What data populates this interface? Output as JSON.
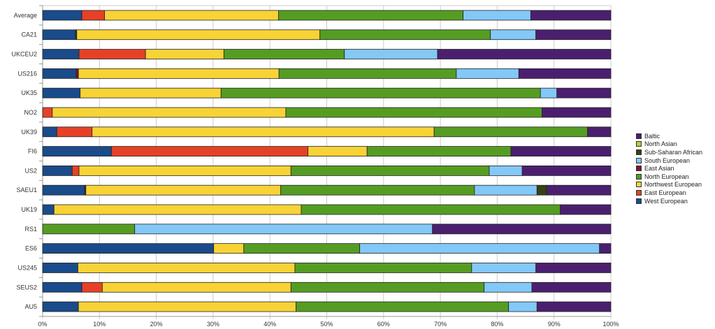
{
  "chart_data": {
    "type": "bar",
    "orientation": "horizontal",
    "stacked": true,
    "normalized": true,
    "title": "",
    "xlabel": "",
    "ylabel": "",
    "xlim": [
      0,
      100
    ],
    "x_ticks": [
      "0%",
      "10%",
      "20%",
      "30%",
      "40%",
      "50%",
      "60%",
      "70%",
      "80%",
      "90%",
      "100%"
    ],
    "grid": true,
    "legend_position": "right",
    "categories": [
      "Average",
      "CA21",
      "UKCEU2",
      "US216",
      "UK35",
      "NO2",
      "UK39",
      "FI6",
      "US2",
      "SAEU1",
      "UK19",
      "RS1",
      "ES6",
      "US245",
      "SEUS2",
      "AU5"
    ],
    "series": [
      {
        "name": "West European",
        "color": "#1a4b8a",
        "values": [
          6.9,
          5.8,
          6.4,
          5.9,
          6.6,
          0,
          2.5,
          12.1,
          5.2,
          7.4,
          2.0,
          0,
          30.1,
          6.2,
          6.9,
          6.3
        ]
      },
      {
        "name": "East European",
        "color": "#e64127",
        "values": [
          4.0,
          0,
          11.7,
          0,
          0,
          1.7,
          6.2,
          34.6,
          1.2,
          0,
          0,
          0,
          0,
          0,
          3.6,
          0
        ]
      },
      {
        "name": "East Asian",
        "color": "#7d1528",
        "values": [
          0,
          0,
          0,
          0.4,
          0,
          0,
          0,
          0,
          0,
          0.2,
          0,
          0,
          0,
          0,
          0,
          0
        ]
      },
      {
        "name": "Sub-Saharan African (pre)",
        "color": "#344215",
        "values": [
          0,
          0.2,
          0,
          0,
          0,
          0,
          0,
          0,
          0,
          0,
          0,
          0,
          0,
          0,
          0,
          0
        ]
      },
      {
        "name": "Northwest European",
        "color": "#f7d336",
        "values": [
          30.6,
          42.8,
          13.8,
          35.3,
          24.8,
          41.1,
          60.2,
          10.4,
          37.3,
          34.3,
          43.5,
          0,
          5.3,
          38.2,
          33.2,
          38.3
        ]
      },
      {
        "name": "North European",
        "color": "#559d22",
        "values": [
          32.5,
          30.0,
          21.2,
          31.2,
          56.2,
          45.1,
          27.0,
          25.3,
          34.9,
          34.1,
          45.6,
          16.2,
          20.4,
          31.1,
          34.0,
          37.4
        ]
      },
      {
        "name": "South European",
        "color": "#83c8f7",
        "values": [
          11.9,
          8.0,
          16.4,
          11.0,
          2.9,
          0,
          0,
          0,
          5.8,
          11.0,
          0,
          52.4,
          42.2,
          11.3,
          8.4,
          5.0
        ]
      },
      {
        "name": "Sub-Saharan African",
        "color": "#344215",
        "values": [
          0,
          0,
          0,
          0,
          0,
          0,
          0,
          0,
          0,
          1.7,
          0,
          0,
          0,
          0,
          0,
          0
        ]
      },
      {
        "name": "North Asian",
        "color": "#b2d235",
        "values": [
          0,
          0,
          0,
          0,
          0,
          0,
          0,
          0,
          0,
          0,
          0,
          0,
          0,
          0,
          0,
          0
        ]
      },
      {
        "name": "Baltic",
        "color": "#4b1f6f",
        "values": [
          14.1,
          13.2,
          30.5,
          16.2,
          9.5,
          12.1,
          4.1,
          17.6,
          15.6,
          11.3,
          8.9,
          31.4,
          2.0,
          13.2,
          13.9,
          13.0
        ]
      }
    ],
    "legend": [
      {
        "name": "Baltic",
        "color": "#4b1f6f"
      },
      {
        "name": "North Asian",
        "color": "#b2d235"
      },
      {
        "name": "Sub-Saharan African",
        "color": "#344215"
      },
      {
        "name": "South European",
        "color": "#83c8f7"
      },
      {
        "name": "East Asian",
        "color": "#7d1528"
      },
      {
        "name": "North European",
        "color": "#559d22"
      },
      {
        "name": "Northwest European",
        "color": "#f7d336"
      },
      {
        "name": "East European",
        "color": "#e64127"
      },
      {
        "name": "West European",
        "color": "#1a4b8a"
      }
    ]
  }
}
